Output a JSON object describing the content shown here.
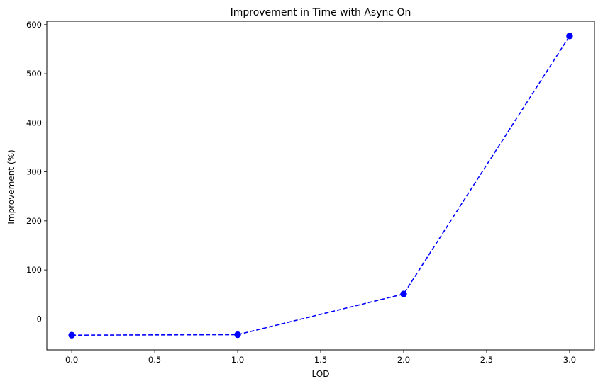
{
  "chart_data": {
    "type": "line",
    "title": "Improvement in Time with Async On",
    "xlabel": "LOD",
    "ylabel": "Improvement (%)",
    "x": [
      0.0,
      1.0,
      2.0,
      3.0
    ],
    "series": [
      {
        "values": [
          -33,
          -32,
          51,
          577
        ],
        "color": "#0000ff",
        "line_style": "dashed",
        "marker": "circle"
      }
    ],
    "xlim": [
      -0.15,
      3.15
    ],
    "ylim": [
      -63,
      607
    ],
    "xticks": [
      0.0,
      0.5,
      1.0,
      1.5,
      2.0,
      2.5,
      3.0
    ],
    "xtick_labels": [
      "0.0",
      "0.5",
      "1.0",
      "1.5",
      "2.0",
      "2.5",
      "3.0"
    ],
    "yticks": [
      0,
      100,
      200,
      300,
      400,
      500,
      600
    ],
    "ytick_labels": [
      "0",
      "100",
      "200",
      "300",
      "400",
      "500",
      "600"
    ],
    "grid": false,
    "legend": "none"
  }
}
